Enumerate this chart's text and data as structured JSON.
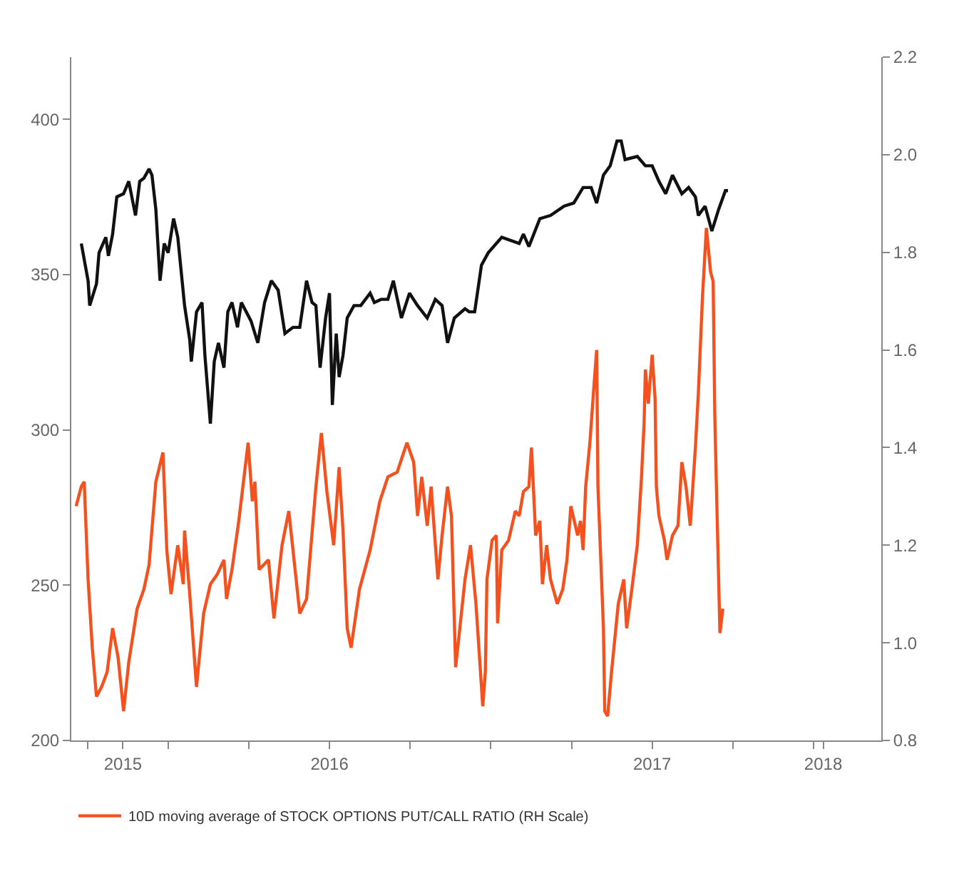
{
  "chart_data": {
    "type": "line",
    "series": [
      {
        "color": "#111111",
        "x": [
          2015.231,
          2015.252,
          2015.257,
          2015.278,
          2015.286,
          2015.307,
          2015.315,
          2015.328,
          2015.341,
          2015.362,
          2015.378,
          2015.399,
          2015.412,
          2015.425,
          2015.441,
          2015.45,
          2015.462,
          2015.475,
          2015.488,
          2015.5,
          2015.517,
          2015.53,
          2015.551,
          2015.567,
          2015.572,
          2015.588,
          2015.605,
          2015.614,
          2015.631,
          2015.643,
          2015.656,
          2015.673,
          2015.685,
          2015.698,
          2015.715,
          2015.727,
          2015.757,
          2015.778,
          2015.799,
          2015.82,
          2015.841,
          2015.862,
          2015.887,
          2015.908,
          2015.929,
          2015.946,
          2015.958,
          2015.971,
          2015.988,
          2016.0,
          2016.009,
          2016.021,
          2016.03,
          2016.042,
          2016.055,
          2016.076,
          2016.097,
          2016.126,
          2016.139,
          2016.16,
          2016.181,
          2016.198,
          2016.223,
          2016.248,
          2016.273,
          2016.303,
          2016.328,
          2016.349,
          2016.366,
          2016.387,
          2016.42,
          2016.433,
          2016.45,
          2016.471,
          2016.492,
          2016.534,
          2016.588,
          2016.601,
          2016.618,
          2016.652,
          2016.685,
          2016.727,
          2016.757,
          2016.786,
          2016.811,
          2016.828,
          2016.849,
          2016.87,
          2016.891,
          2016.904,
          2016.916,
          2016.954,
          2016.979,
          2017.0,
          2017.021,
          2017.042,
          2017.063,
          2017.092,
          2017.113,
          2017.134,
          2017.143,
          2017.164,
          2017.185,
          2017.206,
          2017.227,
          2017.235
        ],
        "values": [
          360,
          348,
          340,
          347,
          357,
          362,
          356,
          363,
          375,
          376,
          380,
          369,
          380,
          381,
          384,
          382,
          371,
          348,
          360,
          357,
          368,
          362,
          340,
          329,
          322,
          338,
          341,
          324,
          302,
          322,
          328,
          320,
          338,
          341,
          333,
          341,
          335,
          328,
          341,
          348,
          345,
          331,
          333,
          333,
          348,
          341,
          340,
          320,
          336,
          344,
          308,
          331,
          317,
          324,
          336,
          340,
          340,
          344,
          341,
          342,
          342,
          348,
          336,
          344,
          340,
          336,
          342,
          340,
          328,
          336,
          339,
          338,
          338,
          353,
          357,
          362,
          360,
          363,
          359,
          368,
          369,
          372,
          373,
          378,
          378,
          373,
          382,
          385,
          393,
          393,
          387,
          388,
          385,
          385,
          380,
          376,
          382,
          376,
          378,
          375,
          369,
          372,
          364,
          371,
          377,
          377
        ]
      },
      {
        "name": "10D moving average of STOCK OPTIONS PUT/CALL RATIO (RH Scale)",
        "color": "#f4511e",
        "axis": "y2",
        "x": [
          2015.215,
          2015.231,
          2015.24,
          2015.252,
          2015.265,
          2015.278,
          2015.294,
          2015.311,
          2015.328,
          2015.345,
          2015.362,
          2015.378,
          2015.404,
          2015.425,
          2015.441,
          2015.462,
          2015.484,
          2015.496,
          2015.509,
          2015.53,
          2015.547,
          2015.551,
          2015.567,
          2015.588,
          2015.61,
          2015.631,
          2015.652,
          2015.673,
          2015.681,
          2015.698,
          2015.719,
          2015.748,
          2015.761,
          2015.769,
          2015.782,
          2015.811,
          2015.828,
          2015.853,
          2015.874,
          2015.887,
          2015.908,
          2015.929,
          2015.958,
          2015.975,
          2015.992,
          2016.013,
          2016.03,
          2016.042,
          2016.055,
          2016.067,
          2016.093,
          2016.126,
          2016.156,
          2016.181,
          2016.21,
          2016.24,
          2016.261,
          2016.273,
          2016.286,
          2016.303,
          2016.315,
          2016.336,
          2016.349,
          2016.366,
          2016.378,
          2016.391,
          2016.42,
          2016.437,
          2016.454,
          2016.475,
          2016.483,
          2016.488,
          2016.504,
          2016.517,
          2016.521,
          2016.534,
          2016.555,
          2016.576,
          2016.588,
          2016.601,
          2016.618,
          2016.626,
          2016.639,
          2016.652,
          2016.66,
          2016.673,
          2016.685,
          2016.706,
          2016.723,
          2016.736,
          2016.748,
          2016.769,
          2016.778,
          2016.786,
          2016.794,
          2016.807,
          2016.82,
          2016.828,
          2016.832,
          2016.849,
          2016.853,
          2016.862,
          2016.874,
          2016.895,
          2016.912,
          2016.921,
          2016.937,
          2016.954,
          2016.967,
          2016.975,
          2016.979,
          2016.988,
          2017.0,
          2017.009,
          2017.013,
          2017.021,
          2017.038,
          2017.046,
          2017.063,
          2017.08,
          2017.092,
          2017.105,
          2017.118,
          2017.134,
          2017.143,
          2017.156,
          2017.168,
          2017.181,
          2017.189,
          2017.194,
          2017.198,
          2017.21,
          2017.219
        ],
        "values": [
          1.28,
          1.32,
          1.33,
          1.13,
          0.99,
          0.89,
          0.91,
          0.94,
          1.03,
          0.97,
          0.86,
          0.96,
          1.07,
          1.11,
          1.16,
          1.33,
          1.39,
          1.19,
          1.1,
          1.2,
          1.12,
          1.23,
          1.1,
          0.91,
          1.06,
          1.12,
          1.14,
          1.17,
          1.09,
          1.15,
          1.25,
          1.41,
          1.29,
          1.33,
          1.15,
          1.17,
          1.05,
          1.2,
          1.27,
          1.19,
          1.06,
          1.09,
          1.32,
          1.43,
          1.31,
          1.2,
          1.36,
          1.23,
          1.03,
          0.99,
          1.11,
          1.19,
          1.29,
          1.34,
          1.35,
          1.41,
          1.37,
          1.26,
          1.34,
          1.24,
          1.32,
          1.13,
          1.22,
          1.32,
          1.26,
          0.95,
          1.13,
          1.2,
          1.08,
          0.87,
          0.94,
          1.13,
          1.21,
          1.22,
          1.04,
          1.19,
          1.21,
          1.27,
          1.26,
          1.31,
          1.32,
          1.4,
          1.22,
          1.25,
          1.12,
          1.2,
          1.13,
          1.08,
          1.11,
          1.17,
          1.28,
          1.22,
          1.25,
          1.19,
          1.32,
          1.41,
          1.53,
          1.6,
          1.32,
          1.03,
          0.86,
          0.85,
          0.94,
          1.08,
          1.13,
          1.03,
          1.11,
          1.2,
          1.34,
          1.45,
          1.56,
          1.49,
          1.59,
          1.5,
          1.32,
          1.26,
          1.21,
          1.17,
          1.22,
          1.24,
          1.37,
          1.32,
          1.24,
          1.4,
          1.51,
          1.71,
          1.85,
          1.76,
          1.74,
          1.47,
          1.35,
          1.02,
          1.07
        ]
      }
    ],
    "xlim": [
      2015.2,
      2017.71
    ],
    "xticks": [
      {
        "value": 2015.25,
        "label": null
      },
      {
        "value": 2015.36,
        "label": "2015"
      },
      {
        "value": 2015.5,
        "label": null
      },
      {
        "value": 2015.75,
        "label": null
      },
      {
        "value": 2016,
        "label": "2016"
      },
      {
        "value": 2016.25,
        "label": null
      },
      {
        "value": 2016.5,
        "label": null
      },
      {
        "value": 2016.75,
        "label": null
      },
      {
        "value": 2017,
        "label": "2017"
      },
      {
        "value": 2017.25,
        "label": null
      },
      {
        "value": 2017.5,
        "label": null
      },
      {
        "value": 2017.53,
        "label": "2018"
      }
    ],
    "ylim": [
      200,
      420
    ],
    "yticks": [
      200,
      250,
      300,
      350,
      400
    ],
    "y2lim": [
      0.8,
      2.2
    ],
    "y2ticks": [
      {
        "value": 0.8,
        "label": "0.8"
      },
      {
        "value": 1.0,
        "label": "1.0"
      },
      {
        "value": 1.2,
        "label": "1.2"
      },
      {
        "value": 1.4,
        "label": "1.4"
      },
      {
        "value": 1.6,
        "label": "1.6"
      },
      {
        "value": 1.8,
        "label": "1.8"
      },
      {
        "value": 2.0,
        "label": "2.0"
      },
      {
        "value": 2.2,
        "label": "2.2"
      }
    ],
    "legend": "bottom"
  }
}
